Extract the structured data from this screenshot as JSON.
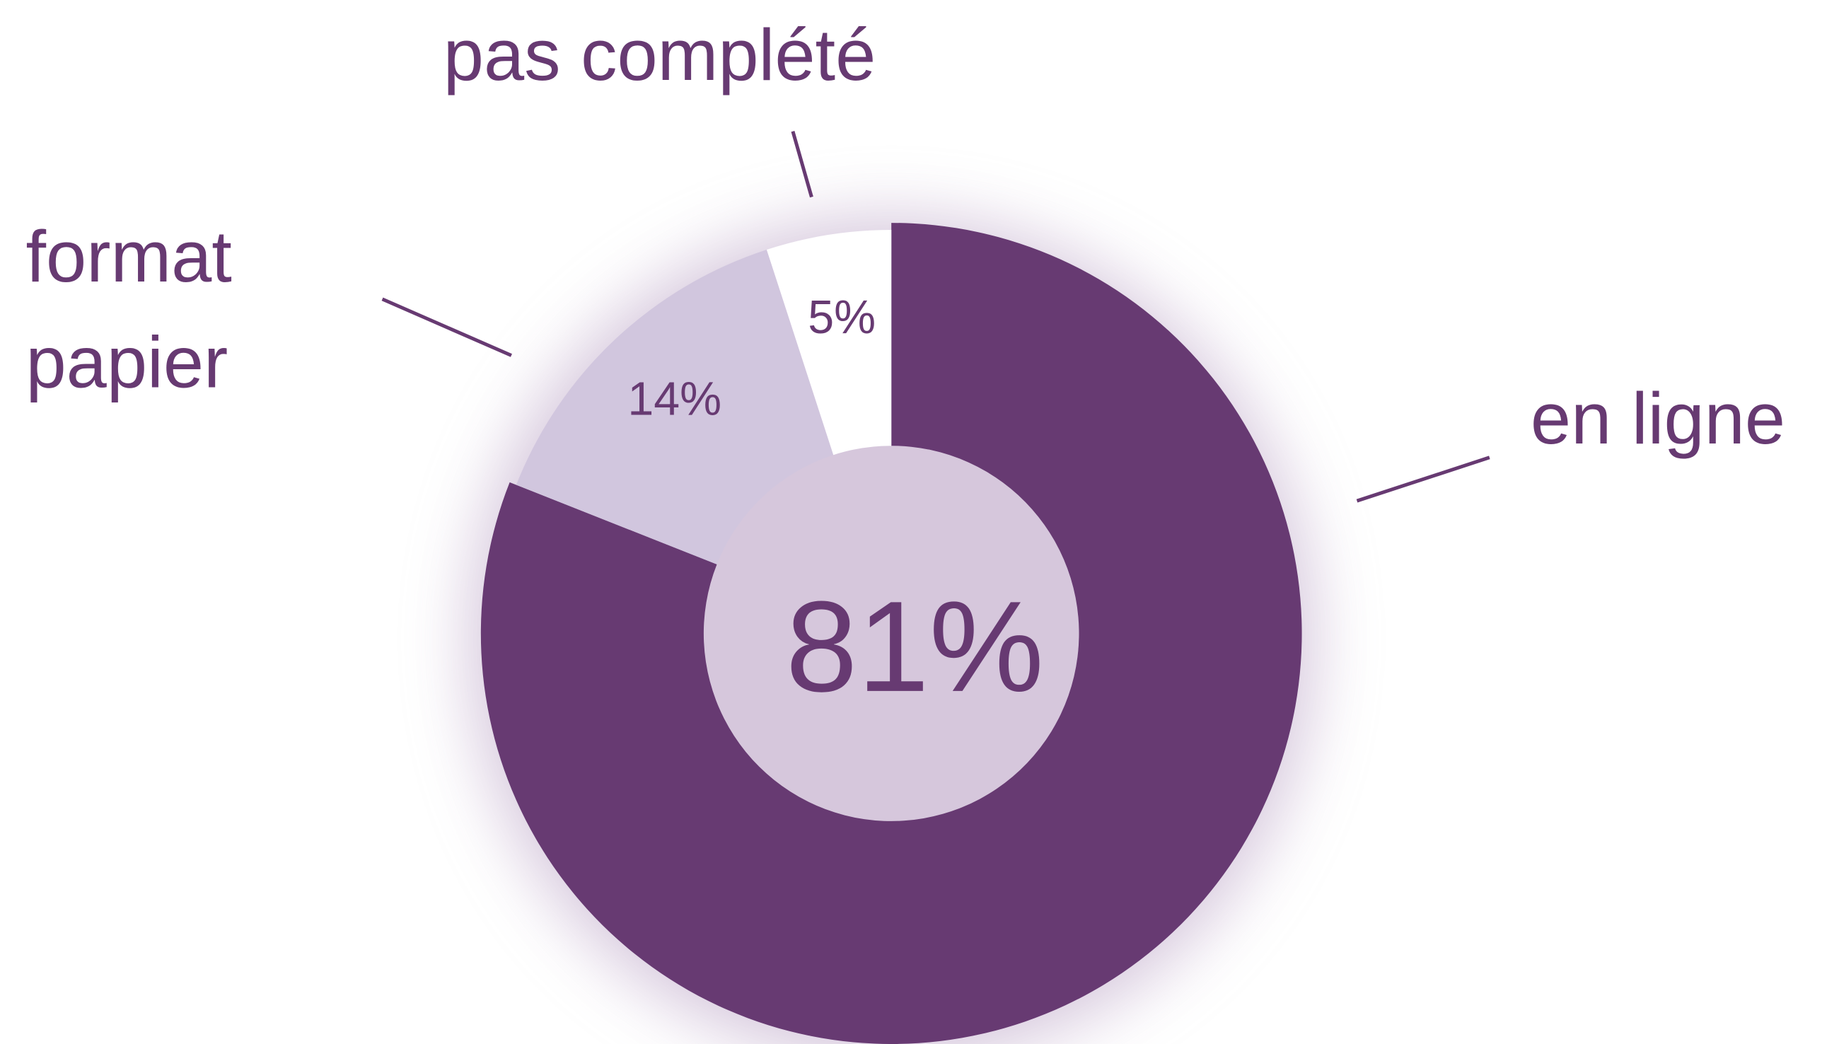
{
  "chart_data": {
    "type": "donut",
    "categories": [
      "en ligne",
      "format papier",
      "pas complété"
    ],
    "values": [
      81,
      14,
      5
    ],
    "value_labels": [
      "81%",
      "14%",
      "5%"
    ],
    "colors": [
      "#673a72",
      "#d1c6de",
      "#ffffff"
    ]
  }
}
